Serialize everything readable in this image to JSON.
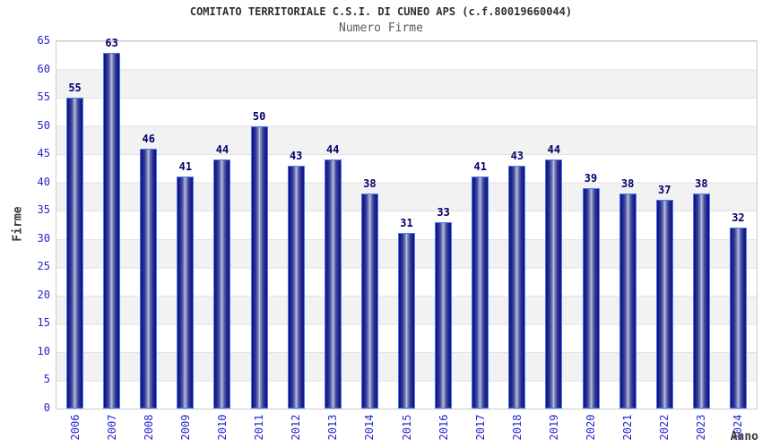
{
  "chart_data": {
    "type": "bar",
    "title": "COMITATO TERRITORIALE C.S.I. DI CUNEO APS (c.f.80019660044)",
    "subtitle": "Numero Firme",
    "xlabel": "Anno",
    "ylabel": "Firme",
    "categories": [
      "2006",
      "2007",
      "2008",
      "2009",
      "2010",
      "2011",
      "2012",
      "2013",
      "2014",
      "2015",
      "2016",
      "2017",
      "2018",
      "2019",
      "2020",
      "2021",
      "2022",
      "2023",
      "2024"
    ],
    "values": [
      55,
      63,
      46,
      41,
      44,
      50,
      43,
      44,
      38,
      31,
      33,
      41,
      43,
      44,
      39,
      38,
      37,
      38,
      32
    ],
    "ylim": [
      0,
      65
    ],
    "ytick_step": 5,
    "grid": "horizontal gridlines every 5 with alternating white/gray bands",
    "legend_position": "none",
    "bar_labels_shown": true
  },
  "colors": {
    "title": "#303030",
    "subtitle": "#5a5a5a",
    "axis_labels": "#2626cd",
    "axis_title": "#3a3a3a",
    "value_labels": "#00006b",
    "bar_border": "#4a7df2",
    "bar_dark": "#10107a",
    "bar_highlight": "#c6cbe6",
    "band_gray": "#f2f2f2",
    "gridline": "#e2e2e2",
    "plot_border": "#cccccc"
  }
}
